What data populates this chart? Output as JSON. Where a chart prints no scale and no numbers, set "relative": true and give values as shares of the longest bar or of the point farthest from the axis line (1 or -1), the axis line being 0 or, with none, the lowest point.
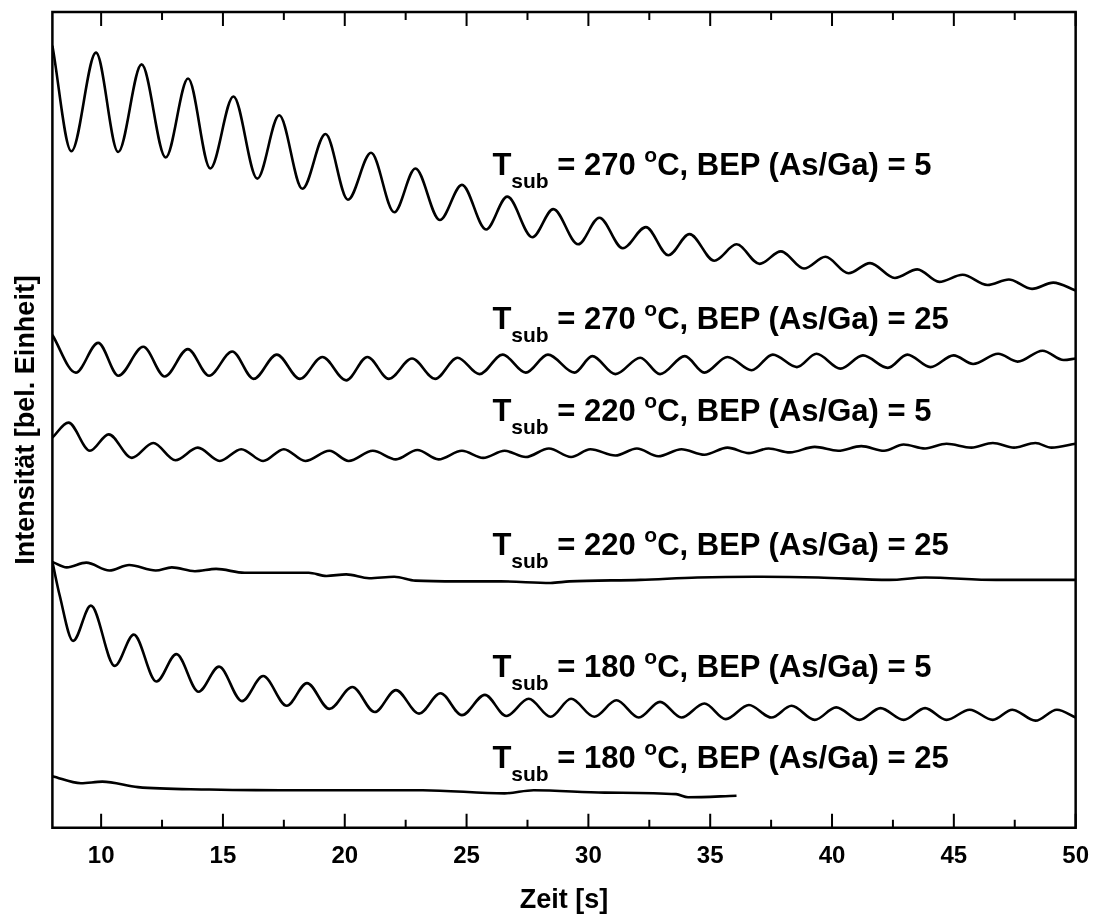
{
  "chart_data": {
    "type": "line",
    "xlabel": "Zeit [s]",
    "ylabel": "Intensität [bel. Einheit]",
    "relative": true,
    "xlim": [
      8,
      50
    ],
    "xticks": [
      10,
      {
        "value": 12.5,
        "label": null
      },
      15,
      {
        "value": 17.5,
        "label": null
      },
      20,
      {
        "value": 22.5,
        "label": null
      },
      25,
      {
        "value": 27.5,
        "label": null
      },
      30,
      {
        "value": 32.5,
        "label": null
      },
      35,
      {
        "value": 37.5,
        "label": null
      },
      40,
      {
        "value": 42.5,
        "label": null
      },
      45,
      {
        "value": 47.5,
        "label": null
      },
      50
    ],
    "grid": false,
    "legend": false,
    "tick_labels": "x",
    "marker": "none",
    "line_style": "solid",
    "series": [
      {
        "name": "T$_{sub}$ = 270 $^{o}$C, BEP (As/Ga) = 5",
        "color": "#000000",
        "x": [
          8.0,
          8.78,
          9.79,
          10.7,
          11.66,
          12.65,
          13.57,
          14.48,
          15.43,
          16.41,
          17.31,
          18.26,
          19.21,
          20.13,
          21.08,
          22.03,
          22.9,
          23.9,
          24.81,
          25.8,
          26.67,
          27.7,
          28.56,
          29.58,
          30.45,
          31.41,
          32.36,
          33.28,
          34.15,
          35.17,
          36.08,
          37.03,
          37.9,
          38.85,
          39.73,
          40.68,
          41.56,
          42.58,
          43.5,
          44.4,
          45.36,
          46.38,
          47.26,
          48.21,
          49.08,
          50
        ],
        "values": [
          1.0,
          0.865,
          0.991,
          0.864,
          0.976,
          0.857,
          0.958,
          0.843,
          0.935,
          0.83,
          0.911,
          0.817,
          0.887,
          0.803,
          0.863,
          0.787,
          0.843,
          0.777,
          0.822,
          0.765,
          0.807,
          0.755,
          0.791,
          0.746,
          0.78,
          0.741,
          0.768,
          0.732,
          0.759,
          0.725,
          0.746,
          0.721,
          0.737,
          0.715,
          0.73,
          0.709,
          0.722,
          0.703,
          0.714,
          0.698,
          0.707,
          0.694,
          0.701,
          0.689,
          0.697,
          0.687
        ]
      },
      {
        "name": "T$_{sub}$ = 270 $^{o}$C, BEP (As/Ga) = 25",
        "color": "#000000",
        "x": [
          8.0,
          8.96,
          9.88,
          10.71,
          11.73,
          12.61,
          13.56,
          14.43,
          15.38,
          16.26,
          17.21,
          18.16,
          19.08,
          20.06,
          20.93,
          21.81,
          22.76,
          23.71,
          24.63,
          25.53,
          26.48,
          27.43,
          28.34,
          29.43,
          30.16,
          31.11,
          32.13,
          32.94,
          33.96,
          34.76,
          35.71,
          36.7,
          37.57,
          38.56,
          39.36,
          40.35,
          41.27,
          42.29,
          43.09,
          44.04,
          44.99,
          45.79,
          46.82,
          47.62,
          48.64,
          49.51,
          50
        ],
        "values": [
          0.63,
          0.582,
          0.62,
          0.578,
          0.615,
          0.577,
          0.612,
          0.578,
          0.609,
          0.574,
          0.605,
          0.574,
          0.602,
          0.572,
          0.602,
          0.574,
          0.6,
          0.574,
          0.601,
          0.58,
          0.605,
          0.582,
          0.605,
          0.582,
          0.603,
          0.58,
          0.601,
          0.58,
          0.603,
          0.582,
          0.602,
          0.585,
          0.605,
          0.589,
          0.606,
          0.587,
          0.604,
          0.588,
          0.605,
          0.589,
          0.604,
          0.593,
          0.606,
          0.596,
          0.61,
          0.598,
          0.6
        ]
      },
      {
        "name": "T$_{sub}$ = 220 $^{o}$C, BEP (As/Ga) = 5",
        "color": "#000000",
        "x": [
          8.0,
          8.66,
          9.54,
          10.31,
          11.26,
          12.14,
          13.05,
          13.97,
          14.87,
          15.75,
          16.65,
          17.5,
          18.38,
          19.37,
          20.16,
          21.15,
          22.1,
          22.98,
          23.85,
          24.81,
          25.68,
          26.56,
          27.43,
          28.38,
          29.29,
          30.08,
          31.11,
          31.99,
          32.87,
          33.82,
          34.76,
          35.71,
          36.59,
          37.4,
          38.27,
          39.29,
          40.25,
          41.2,
          42.14,
          42.94,
          43.82,
          44.7,
          45.72,
          46.6,
          47.47,
          48.35,
          49.01,
          50
        ],
        "values": [
          0.499,
          0.518,
          0.482,
          0.503,
          0.473,
          0.492,
          0.47,
          0.486,
          0.469,
          0.484,
          0.469,
          0.484,
          0.469,
          0.482,
          0.469,
          0.482,
          0.471,
          0.483,
          0.471,
          0.482,
          0.473,
          0.482,
          0.474,
          0.485,
          0.474,
          0.484,
          0.476,
          0.485,
          0.475,
          0.484,
          0.477,
          0.486,
          0.479,
          0.485,
          0.48,
          0.487,
          0.482,
          0.488,
          0.482,
          0.49,
          0.485,
          0.491,
          0.486,
          0.492,
          0.486,
          0.492,
          0.486,
          0.491
        ]
      },
      {
        "name": "T$_{sub}$ = 220 $^{o}$C, BEP (As/Ga) = 25",
        "color": "#000000",
        "x": [
          8.0,
          8.59,
          9.39,
          10.34,
          11.15,
          12.24,
          12.9,
          13.85,
          14.72,
          15.89,
          17.35,
          18.52,
          19.25,
          20.06,
          21.0,
          22.03,
          22.9,
          24.66,
          26.41,
          28.45,
          29.22,
          32.13,
          34.47,
          36.81,
          39.44,
          42.36,
          43.83,
          46.73,
          50
        ],
        "values": [
          0.34,
          0.333,
          0.339,
          0.329,
          0.336,
          0.329,
          0.333,
          0.328,
          0.331,
          0.326,
          0.326,
          0.326,
          0.322,
          0.324,
          0.319,
          0.321,
          0.316,
          0.315,
          0.315,
          0.313,
          0.315,
          0.317,
          0.32,
          0.321,
          0.32,
          0.317,
          0.32,
          0.317,
          0.317
        ]
      },
      {
        "name": "T$_{sub}$ = 180 $^{o}$C, BEP (As/Ga) = 5",
        "color": "#000000",
        "x": [
          8.0,
          8.3,
          8.85,
          9.58,
          10.56,
          11.34,
          12.27,
          13.09,
          14.0,
          14.84,
          15.78,
          16.65,
          17.62,
          18.45,
          19.37,
          20.31,
          21.23,
          22.1,
          23.05,
          23.93,
          24.81,
          25.75,
          26.63,
          27.55,
          28.45,
          29.29,
          30.24,
          31.15,
          32.07,
          32.94,
          33.82,
          34.76,
          35.64,
          36.59,
          37.51,
          38.34,
          39.29,
          40.17,
          41.12,
          41.99,
          42.94,
          43.82,
          44.7,
          45.65,
          46.6,
          47.4,
          48.35,
          49.23,
          50
        ],
        "values": [
          0.34,
          0.297,
          0.239,
          0.284,
          0.207,
          0.247,
          0.187,
          0.222,
          0.174,
          0.206,
          0.162,
          0.194,
          0.156,
          0.185,
          0.152,
          0.18,
          0.148,
          0.176,
          0.146,
          0.172,
          0.144,
          0.17,
          0.143,
          0.165,
          0.142,
          0.165,
          0.142,
          0.163,
          0.141,
          0.161,
          0.141,
          0.159,
          0.139,
          0.157,
          0.141,
          0.156,
          0.138,
          0.154,
          0.138,
          0.153,
          0.138,
          0.153,
          0.138,
          0.151,
          0.138,
          0.151,
          0.137,
          0.151,
          0.141
        ]
      },
      {
        "name": "T$_{sub}$ = 180 $^{o}$C, BEP (As/Ga) = 25",
        "color": "#000000",
        "x": [
          8.0,
          9.17,
          10.05,
          11.51,
          14.43,
          17.35,
          20.27,
          23.2,
          26.56,
          27.75,
          30.67,
          33.6,
          34.09,
          36.08
        ],
        "values": [
          0.066,
          0.057,
          0.059,
          0.052,
          0.049,
          0.048,
          0.048,
          0.048,
          0.044,
          0.048,
          0.045,
          0.043,
          0.039,
          0.041
        ]
      }
    ]
  }
}
